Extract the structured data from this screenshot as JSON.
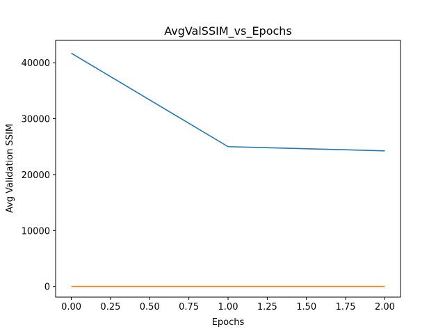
{
  "chart_data": {
    "type": "line",
    "title": "AvgValSSIM_vs_Epochs",
    "xlabel": "Epochs",
    "ylabel": "Avg Validation SSIM",
    "x": [
      0,
      1,
      2
    ],
    "series": [
      {
        "values": [
          41700,
          25000,
          24250
        ],
        "color": "#1f77b4"
      },
      {
        "values": [
          0,
          0,
          0
        ],
        "color": "#ff7f0e"
      }
    ],
    "xlim": [
      -0.1,
      2.1
    ],
    "ylim": [
      -1900,
      44000
    ],
    "xticks": [
      0.0,
      0.25,
      0.5,
      0.75,
      1.0,
      1.25,
      1.5,
      1.75,
      2.0
    ],
    "xtick_labels": [
      "0.00",
      "0.25",
      "0.50",
      "0.75",
      "1.00",
      "1.25",
      "1.50",
      "1.75",
      "2.00"
    ],
    "yticks": [
      0,
      10000,
      20000,
      30000,
      40000
    ],
    "ytick_labels": [
      "0",
      "10000",
      "20000",
      "30000",
      "40000"
    ],
    "grid": false,
    "legend": "none"
  }
}
